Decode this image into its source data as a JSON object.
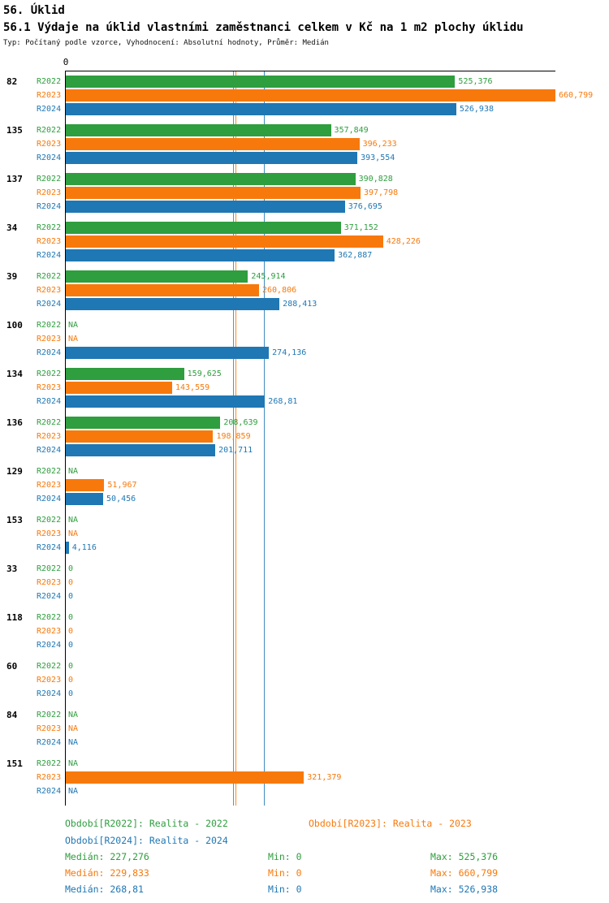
{
  "header": {
    "title": "56. Úklid",
    "subtitle": "56.1 Výdaje na úklid vlastními zaměstnanci celkem v Kč na 1 m2 plochy úklidu",
    "meta": "Typ: Počítaný podle vzorce, Vyhodnocení: Absolutní hodnoty, Průměr: Medián"
  },
  "chart_data": {
    "type": "bar",
    "orientation": "horizontal",
    "axis_zero_label": "0",
    "value_unit": "Kč na 1 m2 plochy úklidu",
    "decimal_format_note": "comma is decimal separator",
    "series": [
      {
        "name": "R2022",
        "color": "#2e9e3e",
        "median": "227,276",
        "min": "0",
        "max": "525,376"
      },
      {
        "name": "R2023",
        "color": "#f8790b",
        "median": "229,833",
        "min": "0",
        "max": "660,799"
      },
      {
        "name": "R2024",
        "color": "#1f77b4",
        "median": "268,81",
        "min": "0",
        "max": "526,938"
      }
    ],
    "groups": [
      {
        "id": "82",
        "values": [
          "525,376",
          "660,799",
          "526,938"
        ]
      },
      {
        "id": "135",
        "values": [
          "357,849",
          "396,233",
          "393,554"
        ]
      },
      {
        "id": "137",
        "values": [
          "390,828",
          "397,798",
          "376,695"
        ]
      },
      {
        "id": "34",
        "values": [
          "371,152",
          "428,226",
          "362,887"
        ]
      },
      {
        "id": "39",
        "values": [
          "245,914",
          "260,806",
          "288,413"
        ]
      },
      {
        "id": "100",
        "values": [
          "NA",
          "NA",
          "274,136"
        ]
      },
      {
        "id": "134",
        "values": [
          "159,625",
          "143,559",
          "268,81"
        ]
      },
      {
        "id": "136",
        "values": [
          "208,639",
          "198,859",
          "201,711"
        ]
      },
      {
        "id": "129",
        "values": [
          "NA",
          "51,967",
          "50,456"
        ]
      },
      {
        "id": "153",
        "values": [
          "NA",
          "NA",
          "4,116"
        ]
      },
      {
        "id": "33",
        "values": [
          "0",
          "0",
          "0"
        ]
      },
      {
        "id": "118",
        "values": [
          "0",
          "0",
          "0"
        ]
      },
      {
        "id": "60",
        "values": [
          "0",
          "0",
          "0"
        ]
      },
      {
        "id": "84",
        "values": [
          "NA",
          "NA",
          "NA"
        ]
      },
      {
        "id": "151",
        "values": [
          "NA",
          "321,379",
          "NA"
        ]
      }
    ],
    "xlim_max_display": "660,799"
  },
  "footer": {
    "legend": [
      {
        "label": "Období[R2022]: Realita - 2022"
      },
      {
        "label": "Období[R2023]: Realita - 2023"
      },
      {
        "label": "Období[R2024]: Realita - 2024"
      }
    ],
    "stats": [
      {
        "median": "Medián: 227,276",
        "min": "Min: 0",
        "max": "Max: 525,376"
      },
      {
        "median": "Medián: 229,833",
        "min": "Min: 0",
        "max": "Max: 660,799"
      },
      {
        "median": "Medián: 268,81",
        "min": "Min: 0",
        "max": "Max: 526,938"
      }
    ]
  }
}
